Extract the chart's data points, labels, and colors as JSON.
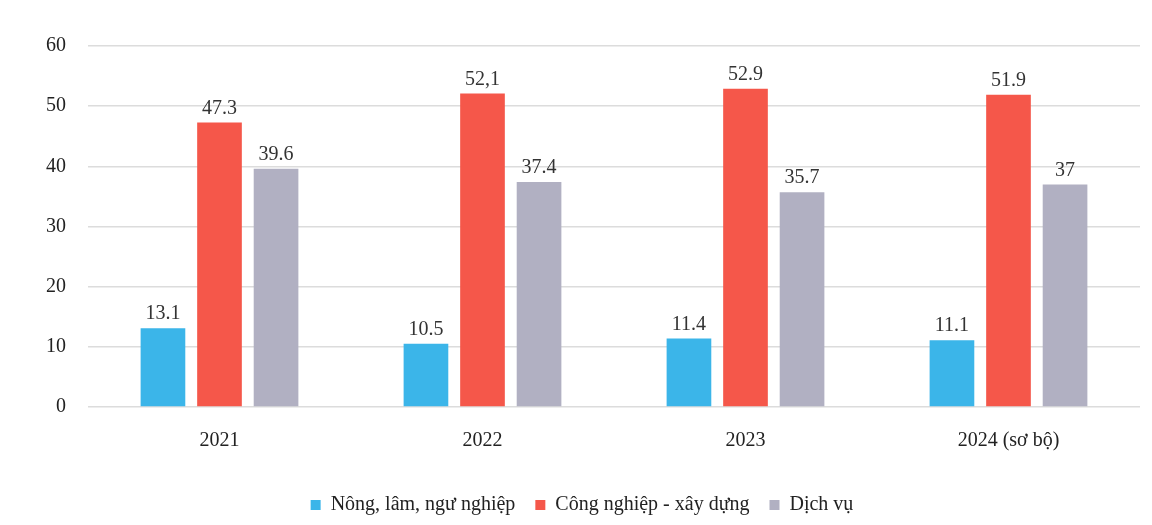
{
  "chart_data": {
    "type": "bar",
    "categories": [
      "2021",
      "2022",
      "2023",
      "2024 (sơ bộ)"
    ],
    "series": [
      {
        "name": "Nông, lâm, ngư nghiệp",
        "color": "#3bb5e9",
        "values": [
          13.1,
          10.5,
          11.4,
          11.1
        ],
        "value_labels": [
          "13.1",
          "10.5",
          "11.4",
          "11.1"
        ]
      },
      {
        "name": "Công nghiệp - xây dựng",
        "color": "#f5574a",
        "values": [
          47.3,
          52.1,
          52.9,
          51.9
        ],
        "value_labels": [
          "47.3",
          "52,1",
          "52.9",
          "51.9"
        ]
      },
      {
        "name": "Dịch vụ",
        "color": "#b1b0c2",
        "values": [
          39.6,
          37.4,
          35.7,
          37
        ],
        "value_labels": [
          "39.6",
          "37.4",
          "35.7",
          "37"
        ]
      }
    ],
    "ylim": [
      0,
      60
    ],
    "yticks": [
      0,
      10,
      20,
      30,
      40,
      50,
      60
    ],
    "grid": "y",
    "legend": "bottom"
  }
}
